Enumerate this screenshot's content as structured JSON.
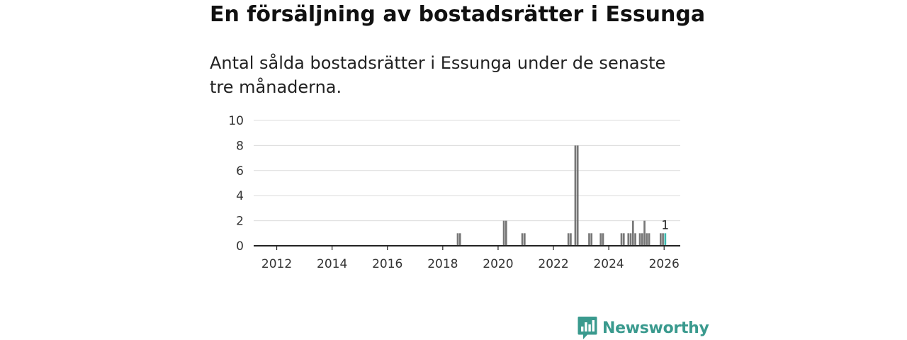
{
  "page": {
    "title": "En försäljning av bostadsrätter i Essunga",
    "subtitle": "Antal sålda bostadsrätter i Essunga under de senaste tre månaderna.",
    "brand": "Newsworthy"
  },
  "colors": {
    "bar": "#777777",
    "highlight": "#3bb8ad",
    "brand": "#3a9a8e",
    "grid": "#dcdcdc",
    "axis": "#222222"
  },
  "icons": {
    "brand_logo": "bar-chart-speech-bubble-icon"
  },
  "chart_data": {
    "type": "bar",
    "x_unit": "month",
    "xlim": [
      "2011-03",
      "2026-08"
    ],
    "ylim": [
      0,
      10
    ],
    "yticks": [
      0,
      2,
      4,
      6,
      8,
      10
    ],
    "xticks": [
      "2012",
      "2014",
      "2016",
      "2018",
      "2020",
      "2022",
      "2024",
      "2026"
    ],
    "grid": true,
    "xlabel": "",
    "ylabel": "",
    "points": [
      {
        "x": "2018-07",
        "y": 1
      },
      {
        "x": "2018-08",
        "y": 1
      },
      {
        "x": "2020-03",
        "y": 2
      },
      {
        "x": "2020-04",
        "y": 2
      },
      {
        "x": "2020-11",
        "y": 1
      },
      {
        "x": "2020-12",
        "y": 1
      },
      {
        "x": "2022-07",
        "y": 1
      },
      {
        "x": "2022-08",
        "y": 1
      },
      {
        "x": "2022-10",
        "y": 8
      },
      {
        "x": "2022-11",
        "y": 8
      },
      {
        "x": "2023-04",
        "y": 1
      },
      {
        "x": "2023-05",
        "y": 1
      },
      {
        "x": "2023-09",
        "y": 1
      },
      {
        "x": "2023-10",
        "y": 1
      },
      {
        "x": "2024-06",
        "y": 1
      },
      {
        "x": "2024-07",
        "y": 1
      },
      {
        "x": "2024-09",
        "y": 1
      },
      {
        "x": "2024-10",
        "y": 1
      },
      {
        "x": "2024-11",
        "y": 2
      },
      {
        "x": "2024-12",
        "y": 1
      },
      {
        "x": "2025-02",
        "y": 1
      },
      {
        "x": "2025-03",
        "y": 1
      },
      {
        "x": "2025-04",
        "y": 2
      },
      {
        "x": "2025-05",
        "y": 1
      },
      {
        "x": "2025-06",
        "y": 1
      },
      {
        "x": "2025-11",
        "y": 1
      },
      {
        "x": "2025-12",
        "y": 1
      },
      {
        "x": "2026-01",
        "y": 1,
        "highlight": true,
        "label": "1"
      }
    ]
  }
}
